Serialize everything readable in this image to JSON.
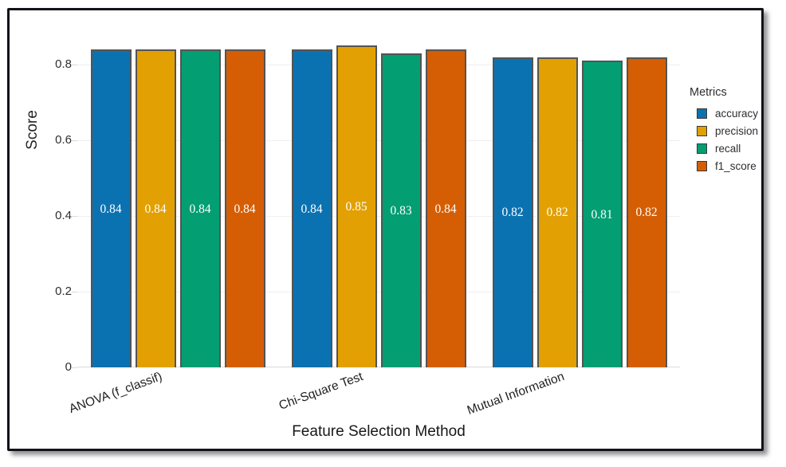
{
  "chart_data": {
    "type": "bar",
    "title": "",
    "xlabel": "Feature Selection Method",
    "ylabel": "Score",
    "categories": [
      "ANOVA (f_classif)",
      "Chi-Square Test",
      "Mutual Information"
    ],
    "series": [
      {
        "name": "accuracy",
        "color": "#0b72b1",
        "values": [
          0.84,
          0.84,
          0.82
        ],
        "labels": [
          "0.84",
          "0.84",
          "0.82"
        ]
      },
      {
        "name": "precision",
        "color": "#e2a002",
        "values": [
          0.84,
          0.85,
          0.82
        ],
        "labels": [
          "0.84",
          "0.85",
          "0.82"
        ]
      },
      {
        "name": "recall",
        "color": "#049e73",
        "values": [
          0.84,
          0.83,
          0.81
        ],
        "labels": [
          "0.84",
          "0.83",
          "0.81"
        ]
      },
      {
        "name": "f1_score",
        "color": "#d55e04",
        "values": [
          0.84,
          0.84,
          0.82
        ],
        "labels": [
          "0.84",
          "0.84",
          "0.82"
        ]
      }
    ],
    "y_ticks": {
      "values": [
        0,
        0.2,
        0.4,
        0.6,
        0.8
      ],
      "labels": [
        "0",
        "0.2",
        "0.4",
        "0.6",
        "0.8"
      ]
    },
    "ylim": [
      0,
      0.88
    ],
    "grid": true,
    "legend": {
      "title": "Metrics",
      "position": "right"
    },
    "bar_value_text_color": "#ffffff",
    "bar_border_color": "#545454"
  }
}
